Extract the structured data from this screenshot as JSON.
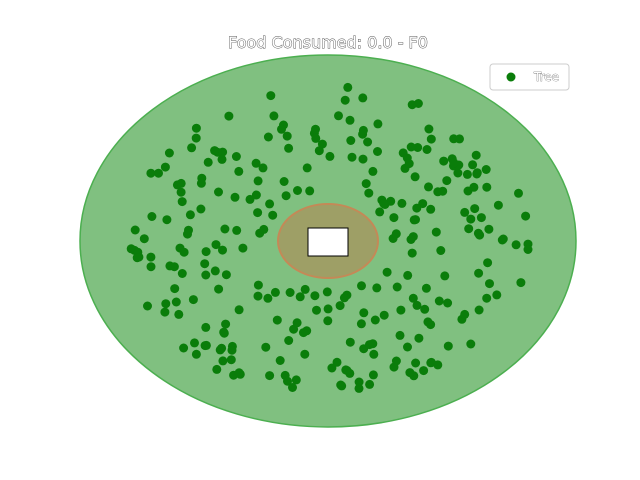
{
  "title": "Food Consumed: 0.0  - F0",
  "legend": {
    "label": "Tree",
    "location": "upper-right"
  },
  "colors": {
    "field": "#80c080",
    "field_edge": "#4caf50",
    "tree": "#0a7d0a",
    "nest": "#a49a62",
    "nest_edge": "#d08050",
    "agent": "#ffffff"
  },
  "scene": {
    "type": "foraging simulation",
    "field_shape": "ellipse",
    "nest_shape": "ellipse",
    "agent_shape": "rectangle",
    "food_consumed": 0.0,
    "frame": 0,
    "tree_count": 280
  }
}
